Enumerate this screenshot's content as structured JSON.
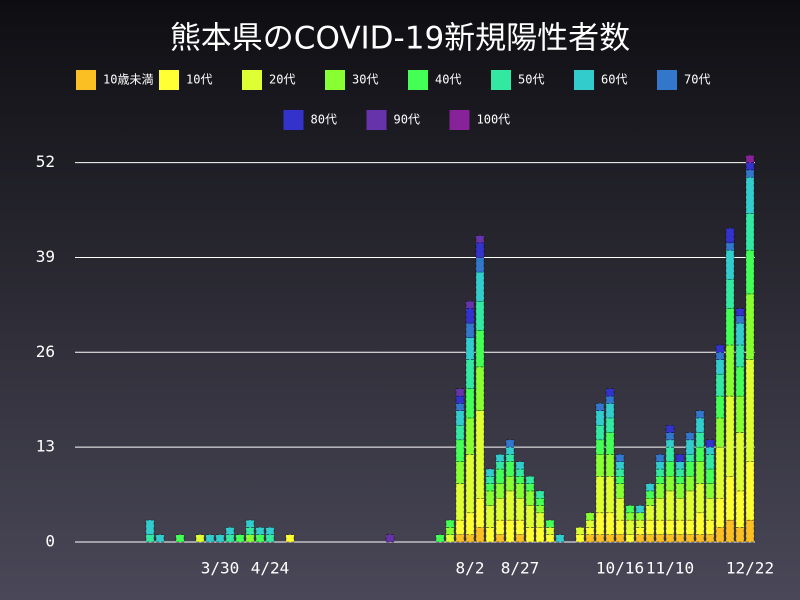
{
  "chart_data": {
    "type": "stacked-bar",
    "title": "熊本県のCOVID-19新規陽性者数",
    "categories": [
      null,
      null,
      null,
      null,
      null,
      null,
      null,
      null,
      null,
      null,
      null,
      null,
      null,
      null,
      "3/30",
      null,
      null,
      null,
      null,
      "4/24",
      null,
      null,
      null,
      null,
      null,
      null,
      null,
      null,
      null,
      null,
      null,
      null,
      null,
      null,
      null,
      null,
      null,
      null,
      null,
      "8/2",
      null,
      null,
      null,
      null,
      "8/27",
      null,
      null,
      null,
      null,
      null,
      null,
      null,
      null,
      null,
      "10/16",
      null,
      null,
      null,
      null,
      "11/10",
      null,
      null,
      null,
      null,
      null,
      null,
      null,
      "12/22"
    ],
    "ylim": [
      0,
      54
    ],
    "yticks": [
      0,
      13,
      26,
      39,
      52
    ],
    "grid": true,
    "series": [
      {
        "name": "10歳未満",
        "color": "#fbbf24",
        "values": [
          0,
          0,
          0,
          0,
          0,
          0,
          0,
          0,
          0,
          0,
          0,
          0,
          0,
          0,
          0,
          0,
          0,
          0,
          0,
          0,
          0,
          0,
          0,
          0,
          0,
          0,
          0,
          0,
          0,
          0,
          0,
          0,
          0,
          0,
          0,
          0,
          0,
          0,
          1,
          1,
          2,
          0,
          1,
          0,
          1,
          0,
          0,
          0,
          0,
          0,
          0,
          1,
          1,
          1,
          1,
          0,
          1,
          1,
          1,
          1,
          1,
          1,
          1,
          1,
          2,
          3,
          2,
          3
        ]
      },
      {
        "name": "10代",
        "color": "#ffff33",
        "values": [
          0,
          0,
          0,
          0,
          0,
          0,
          0,
          0,
          0,
          0,
          0,
          0,
          0,
          0,
          0,
          0,
          0,
          0,
          0,
          0,
          0,
          1,
          0,
          0,
          0,
          0,
          0,
          0,
          0,
          0,
          0,
          0,
          0,
          0,
          0,
          0,
          0,
          0,
          2,
          3,
          4,
          2,
          2,
          3,
          2,
          2,
          2,
          1,
          0,
          0,
          1,
          1,
          3,
          3,
          2,
          1,
          1,
          2,
          2,
          2,
          2,
          2,
          3,
          2,
          4,
          6,
          5,
          8
        ]
      },
      {
        "name": "20代",
        "color": "#ddff33",
        "values": [
          0,
          0,
          0,
          0,
          0,
          0,
          0,
          0,
          0,
          0,
          0,
          0,
          1,
          0,
          0,
          0,
          0,
          0,
          0,
          0,
          0,
          0,
          0,
          0,
          0,
          0,
          0,
          0,
          0,
          0,
          0,
          0,
          0,
          0,
          0,
          0,
          0,
          1,
          5,
          8,
          12,
          3,
          3,
          4,
          3,
          3,
          2,
          1,
          0,
          0,
          1,
          1,
          5,
          5,
          3,
          2,
          1,
          2,
          3,
          4,
          3,
          4,
          4,
          3,
          7,
          11,
          8,
          14
        ]
      },
      {
        "name": "30代",
        "color": "#88ff33",
        "values": [
          0,
          0,
          0,
          0,
          0,
          0,
          0,
          0,
          0,
          0,
          0,
          0,
          0,
          0,
          0,
          0,
          0,
          1,
          0,
          0,
          0,
          0,
          0,
          0,
          0,
          0,
          0,
          0,
          0,
          0,
          0,
          0,
          0,
          0,
          0,
          0,
          0,
          1,
          3,
          5,
          6,
          2,
          2,
          2,
          2,
          2,
          1,
          0,
          0,
          0,
          0,
          1,
          3,
          3,
          2,
          1,
          1,
          1,
          2,
          2,
          2,
          2,
          3,
          2,
          4,
          7,
          5,
          9
        ]
      },
      {
        "name": "40代",
        "color": "#44ff55",
        "values": [
          0,
          0,
          0,
          0,
          0,
          0,
          0,
          0,
          0,
          0,
          1,
          0,
          0,
          0,
          0,
          0,
          1,
          0,
          1,
          0,
          0,
          0,
          0,
          0,
          0,
          0,
          0,
          0,
          0,
          0,
          0,
          0,
          0,
          0,
          0,
          0,
          1,
          1,
          3,
          4,
          5,
          1,
          2,
          2,
          1,
          1,
          1,
          1,
          0,
          0,
          0,
          0,
          2,
          3,
          1,
          1,
          0,
          1,
          1,
          2,
          1,
          2,
          2,
          2,
          3,
          5,
          4,
          6
        ]
      },
      {
        "name": "50代",
        "color": "#33e8a0",
        "values": [
          0,
          0,
          0,
          0,
          0,
          0,
          0,
          1,
          0,
          0,
          0,
          0,
          0,
          0,
          0,
          1,
          0,
          1,
          0,
          1,
          0,
          0,
          0,
          0,
          0,
          0,
          0,
          0,
          0,
          0,
          0,
          0,
          0,
          0,
          0,
          0,
          0,
          0,
          2,
          4,
          4,
          1,
          1,
          1,
          1,
          1,
          1,
          0,
          0,
          0,
          0,
          0,
          2,
          2,
          1,
          0,
          0,
          0,
          1,
          2,
          1,
          1,
          2,
          2,
          3,
          4,
          3,
          5
        ]
      },
      {
        "name": "60代",
        "color": "#33cccc",
        "values": [
          0,
          0,
          0,
          0,
          0,
          0,
          0,
          2,
          1,
          0,
          0,
          0,
          0,
          1,
          1,
          1,
          0,
          1,
          1,
          1,
          0,
          0,
          0,
          0,
          0,
          0,
          0,
          0,
          0,
          0,
          0,
          0,
          0,
          0,
          0,
          0,
          0,
          0,
          2,
          3,
          4,
          1,
          1,
          1,
          1,
          0,
          0,
          0,
          1,
          0,
          0,
          0,
          2,
          2,
          1,
          0,
          1,
          1,
          1,
          1,
          1,
          2,
          2,
          1,
          2,
          4,
          3,
          5
        ]
      },
      {
        "name": "70代",
        "color": "#3377cc",
        "values": [
          0,
          0,
          0,
          0,
          0,
          0,
          0,
          0,
          0,
          0,
          0,
          0,
          0,
          0,
          0,
          0,
          0,
          0,
          0,
          0,
          0,
          0,
          0,
          0,
          0,
          0,
          0,
          0,
          0,
          0,
          0,
          0,
          0,
          0,
          0,
          0,
          0,
          0,
          1,
          2,
          2,
          0,
          0,
          1,
          0,
          0,
          0,
          0,
          0,
          0,
          0,
          0,
          1,
          1,
          1,
          0,
          0,
          0,
          1,
          1,
          0,
          1,
          1,
          0,
          1,
          1,
          1,
          1
        ]
      },
      {
        "name": "80代",
        "color": "#3333cc",
        "values": [
          0,
          0,
          0,
          0,
          0,
          0,
          0,
          0,
          0,
          0,
          0,
          0,
          0,
          0,
          0,
          0,
          0,
          0,
          0,
          0,
          0,
          0,
          0,
          0,
          0,
          0,
          0,
          0,
          0,
          0,
          0,
          0,
          0,
          0,
          0,
          0,
          0,
          0,
          1,
          2,
          2,
          0,
          0,
          0,
          0,
          0,
          0,
          0,
          0,
          0,
          0,
          0,
          0,
          1,
          0,
          0,
          0,
          0,
          0,
          1,
          1,
          0,
          0,
          1,
          1,
          2,
          1,
          1
        ]
      },
      {
        "name": "90代",
        "color": "#6633aa",
        "values": [
          0,
          0,
          0,
          0,
          0,
          0,
          0,
          0,
          0,
          0,
          0,
          0,
          0,
          0,
          0,
          0,
          0,
          0,
          0,
          0,
          0,
          0,
          0,
          0,
          0,
          0,
          0,
          0,
          0,
          0,
          0,
          1,
          0,
          0,
          0,
          0,
          0,
          0,
          1,
          1,
          1,
          0,
          0,
          0,
          0,
          0,
          0,
          0,
          0,
          0,
          0,
          0,
          0,
          0,
          0,
          0,
          0,
          0,
          0,
          0,
          0,
          0,
          0,
          0,
          0,
          0,
          0,
          0
        ]
      },
      {
        "name": "100代",
        "color": "#882299",
        "values": [
          0,
          0,
          0,
          0,
          0,
          0,
          0,
          0,
          0,
          0,
          0,
          0,
          0,
          0,
          0,
          0,
          0,
          0,
          0,
          0,
          0,
          0,
          0,
          0,
          0,
          0,
          0,
          0,
          0,
          0,
          0,
          0,
          0,
          0,
          0,
          0,
          0,
          0,
          0,
          0,
          0,
          0,
          0,
          0,
          0,
          0,
          0,
          0,
          0,
          0,
          0,
          0,
          0,
          0,
          0,
          0,
          0,
          0,
          0,
          0,
          0,
          0,
          0,
          0,
          0,
          0,
          0,
          1
        ]
      }
    ]
  }
}
